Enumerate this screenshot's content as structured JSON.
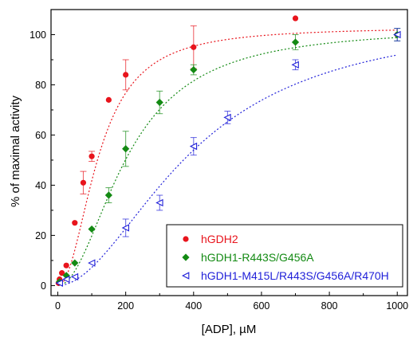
{
  "chart_data": {
    "type": "scatter",
    "title": "",
    "xlabel": "[ADP], µM",
    "ylabel": "% of maximal activity",
    "xlim": [
      -20,
      1030
    ],
    "ylim": [
      -4,
      110
    ],
    "x_ticks": [
      0,
      200,
      400,
      600,
      800,
      1000
    ],
    "y_ticks": [
      0,
      20,
      40,
      60,
      80,
      100
    ],
    "x_tick_labels": [
      "0",
      "200",
      "400",
      "600",
      "800",
      "1000"
    ],
    "y_tick_labels": [
      "0",
      "20",
      "40",
      "60",
      "80",
      "100"
    ],
    "grid": false,
    "legend_position": "bottom-right",
    "series": [
      {
        "name": "hGDH2",
        "color": "#e8141c",
        "marker": "circle",
        "fit": {
          "vmax": 103,
          "k": 120,
          "n": 2.1
        },
        "points": [
          {
            "x": 2,
            "y": 1,
            "err": 0
          },
          {
            "x": 5,
            "y": 2.5,
            "err": 0
          },
          {
            "x": 12,
            "y": 5,
            "err": 0
          },
          {
            "x": 25,
            "y": 8,
            "err": 0
          },
          {
            "x": 50,
            "y": 25,
            "err": 0
          },
          {
            "x": 75,
            "y": 41,
            "err": 4.5
          },
          {
            "x": 100,
            "y": 51.5,
            "err": 2
          },
          {
            "x": 150,
            "y": 74,
            "err": 0
          },
          {
            "x": 200,
            "y": 84,
            "err": 6
          },
          {
            "x": 400,
            "y": 95,
            "err": 8.5
          },
          {
            "x": 700,
            "y": 106.5,
            "err": 0
          },
          {
            "x": 1000,
            "y": 100,
            "err": 0
          }
        ]
      },
      {
        "name": "hGDH1-R443S/G456A",
        "color": "#138a13",
        "marker": "diamond",
        "fit": {
          "vmax": 103,
          "k": 205,
          "n": 2.0
        },
        "points": [
          {
            "x": 5,
            "y": 1.5,
            "err": 0
          },
          {
            "x": 25,
            "y": 4,
            "err": 0
          },
          {
            "x": 50,
            "y": 9,
            "err": 0
          },
          {
            "x": 100,
            "y": 22.5,
            "err": 0
          },
          {
            "x": 150,
            "y": 36,
            "err": 3
          },
          {
            "x": 200,
            "y": 54.5,
            "err": 7
          },
          {
            "x": 300,
            "y": 73,
            "err": 4.5
          },
          {
            "x": 400,
            "y": 86,
            "err": 2
          },
          {
            "x": 700,
            "y": 97,
            "err": 3
          },
          {
            "x": 1000,
            "y": 100,
            "err": 2.5
          }
        ]
      },
      {
        "name": "hGDH1-M415L/R443S/G456A/R470H",
        "color": "#2121d9",
        "marker": "triangle-left",
        "fit": {
          "vmax": 108,
          "k": 400,
          "n": 1.9
        },
        "points": [
          {
            "x": 5,
            "y": 1,
            "err": 0
          },
          {
            "x": 25,
            "y": 2.5,
            "err": 0
          },
          {
            "x": 50,
            "y": 3.5,
            "err": 0
          },
          {
            "x": 100,
            "y": 9,
            "err": 0
          },
          {
            "x": 200,
            "y": 23,
            "err": 3.5
          },
          {
            "x": 300,
            "y": 33,
            "err": 3
          },
          {
            "x": 400,
            "y": 55.5,
            "err": 3.5
          },
          {
            "x": 500,
            "y": 67,
            "err": 2.5
          },
          {
            "x": 700,
            "y": 88,
            "err": 2
          },
          {
            "x": 1000,
            "y": 100,
            "err": 2.5
          }
        ]
      }
    ]
  }
}
